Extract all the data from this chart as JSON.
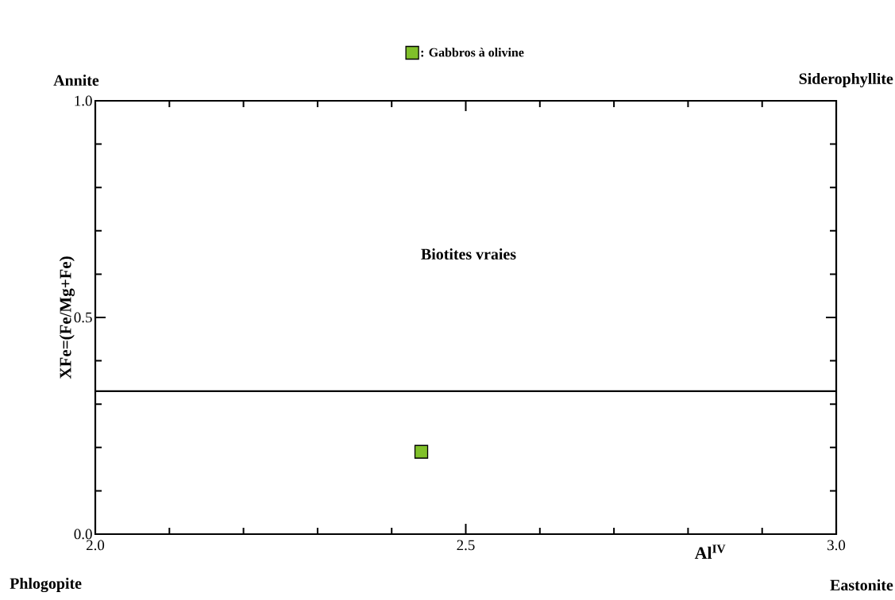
{
  "chart_data": {
    "type": "scatter",
    "xlabel": "Al$^{IV}$",
    "ylabel": "XFe=(Fe/Mg+Fe)",
    "series": [
      {
        "name": ": Gabbros à olivine",
        "color": "#80c02a",
        "x": [
          2.44
        ],
        "values": [
          0.19
        ]
      }
    ],
    "marker": "square",
    "legend": "top",
    "xlim": [
      2.0,
      3.0
    ],
    "ylim": [
      0.0,
      1.0
    ],
    "xticks": [
      {
        "value": 2.0,
        "label": "2.0"
      },
      {
        "value": 2.1,
        "label": null
      },
      {
        "value": 2.2,
        "label": null
      },
      {
        "value": 2.3,
        "label": null
      },
      {
        "value": 2.4,
        "label": null
      },
      {
        "value": 2.5,
        "label": "2.5"
      },
      {
        "value": 2.6,
        "label": null
      },
      {
        "value": 2.7,
        "label": null
      },
      {
        "value": 2.8,
        "label": null
      },
      {
        "value": 2.9,
        "label": null
      },
      {
        "value": 3.0,
        "label": "3.0"
      }
    ],
    "yticks": [
      {
        "value": 0.0,
        "label": "0.0"
      },
      {
        "value": 0.1,
        "label": null
      },
      {
        "value": 0.2,
        "label": null
      },
      {
        "value": 0.3,
        "label": null
      },
      {
        "value": 0.4,
        "label": null
      },
      {
        "value": 0.5,
        "label": "0.5"
      },
      {
        "value": 0.6,
        "label": null
      },
      {
        "value": 0.7,
        "label": null
      },
      {
        "value": 0.8,
        "label": null
      },
      {
        "value": 0.9,
        "label": null
      },
      {
        "value": 1.0,
        "label": "1.0"
      }
    ],
    "ref_lines": [
      {
        "axis": "y",
        "value": 0.33
      }
    ],
    "annotations": [
      "Annite",
      "Siderophyllite",
      "Phlogopite",
      "Eastonite",
      "Biotites vraies"
    ]
  }
}
